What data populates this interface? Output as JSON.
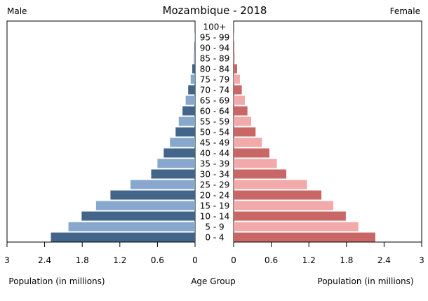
{
  "chart_data": {
    "type": "bar",
    "title": "Mozambique - 2018",
    "left_label": "Male",
    "right_label": "Female",
    "xlabel_left": "Population (in millions)",
    "xlabel_center": "Age Group",
    "xlabel_right": "Population (in millions)",
    "xlim": [
      0,
      3
    ],
    "ticks": [
      3,
      2.4,
      1.8,
      1.2,
      0.6,
      0
    ],
    "tick_labels_left": [
      "3",
      "2.4",
      "1.8",
      "1.2",
      "0.6",
      "0"
    ],
    "tick_labels_right": [
      "0",
      "0.6",
      "1.2",
      "1.8",
      "2.4",
      "3"
    ],
    "categories": [
      "0 - 4",
      "5 - 9",
      "10 - 14",
      "15 - 19",
      "20 - 24",
      "25 - 29",
      "30 - 34",
      "35 - 39",
      "40 - 44",
      "45 - 49",
      "50 - 54",
      "55 - 59",
      "60 - 64",
      "65 - 69",
      "70 - 74",
      "75 - 79",
      "80 - 84",
      "85 - 89",
      "90 - 94",
      "95 - 99",
      "100+"
    ],
    "series": [
      {
        "name": "Male",
        "values": [
          2.3,
          2.02,
          1.81,
          1.58,
          1.35,
          1.03,
          0.7,
          0.6,
          0.5,
          0.4,
          0.31,
          0.26,
          0.2,
          0.15,
          0.11,
          0.07,
          0.045,
          0.02,
          0.01,
          0.005,
          0.002
        ],
        "colors": [
          "#44658a",
          "#87a8cc"
        ]
      },
      {
        "name": "Female",
        "values": [
          2.26,
          1.99,
          1.79,
          1.59,
          1.4,
          1.17,
          0.84,
          0.69,
          0.57,
          0.45,
          0.35,
          0.28,
          0.22,
          0.18,
          0.13,
          0.1,
          0.056,
          0.02,
          0.01,
          0.005,
          0.002
        ],
        "colors": [
          "#c96666",
          "#f2a9a9"
        ]
      }
    ],
    "grid": false
  }
}
